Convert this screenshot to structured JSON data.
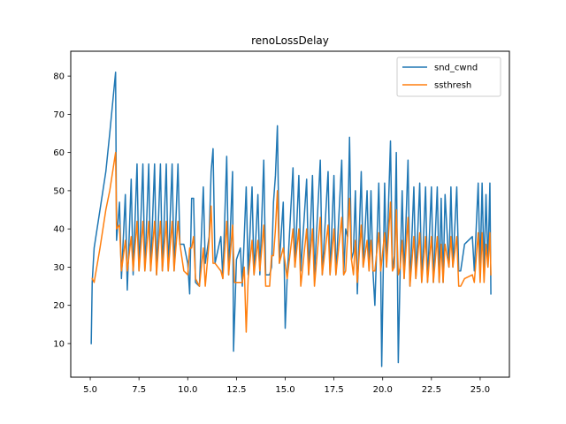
{
  "chart_data": {
    "type": "line",
    "title": "renoLossDelay",
    "xlabel": "",
    "ylabel": "",
    "xlim": [
      4.0,
      26.5
    ],
    "ylim": [
      1.2,
      86.5
    ],
    "xticks": [
      5.0,
      7.5,
      10.0,
      12.5,
      15.0,
      17.5,
      20.0,
      22.5,
      25.0
    ],
    "xtick_labels": [
      "5.0",
      "7.5",
      "10.0",
      "12.5",
      "15.0",
      "17.5",
      "20.0",
      "22.5",
      "25.0"
    ],
    "yticks": [
      10,
      20,
      30,
      40,
      50,
      60,
      70,
      80
    ],
    "ytick_labels": [
      "10",
      "20",
      "30",
      "40",
      "50",
      "60",
      "70",
      "80"
    ],
    "grid": false,
    "legend_position": "top-right",
    "series": [
      {
        "name": "snd_cwnd",
        "color": "#1f77b4",
        "points": [
          [
            5.05,
            10
          ],
          [
            5.1,
            26
          ],
          [
            5.2,
            35
          ],
          [
            5.5,
            45
          ],
          [
            5.8,
            55
          ],
          [
            6.0,
            65
          ],
          [
            6.3,
            81
          ],
          [
            6.35,
            37
          ],
          [
            6.5,
            47
          ],
          [
            6.6,
            27
          ],
          [
            6.8,
            49
          ],
          [
            6.9,
            24
          ],
          [
            7.1,
            53
          ],
          [
            7.2,
            28
          ],
          [
            7.4,
            57
          ],
          [
            7.5,
            29
          ],
          [
            7.7,
            57
          ],
          [
            7.8,
            29
          ],
          [
            8.0,
            57
          ],
          [
            8.1,
            29
          ],
          [
            8.3,
            57
          ],
          [
            8.4,
            28
          ],
          [
            8.6,
            57
          ],
          [
            8.7,
            29
          ],
          [
            8.9,
            57
          ],
          [
            9.0,
            29
          ],
          [
            9.2,
            57
          ],
          [
            9.3,
            29
          ],
          [
            9.5,
            57
          ],
          [
            9.6,
            36
          ],
          [
            9.8,
            36
          ],
          [
            10.0,
            31
          ],
          [
            10.1,
            23
          ],
          [
            10.2,
            48
          ],
          [
            10.3,
            48
          ],
          [
            10.4,
            26
          ],
          [
            10.6,
            25
          ],
          [
            10.8,
            51
          ],
          [
            10.9,
            31
          ],
          [
            11.1,
            38
          ],
          [
            11.2,
            55
          ],
          [
            11.3,
            61
          ],
          [
            11.4,
            31
          ],
          [
            11.7,
            38
          ],
          [
            11.8,
            27
          ],
          [
            12.0,
            59
          ],
          [
            12.1,
            28
          ],
          [
            12.3,
            55
          ],
          [
            12.35,
            8
          ],
          [
            12.5,
            32
          ],
          [
            12.7,
            35
          ],
          [
            12.8,
            25
          ],
          [
            13.0,
            51
          ],
          [
            13.1,
            28
          ],
          [
            13.3,
            51
          ],
          [
            13.4,
            28
          ],
          [
            13.6,
            49
          ],
          [
            13.7,
            28
          ],
          [
            13.9,
            58
          ],
          [
            14.0,
            28
          ],
          [
            14.2,
            28
          ],
          [
            14.3,
            30
          ],
          [
            14.4,
            47
          ],
          [
            14.5,
            54
          ],
          [
            14.6,
            67
          ],
          [
            14.7,
            31
          ],
          [
            14.9,
            47
          ],
          [
            15.0,
            14
          ],
          [
            15.1,
            27
          ],
          [
            15.4,
            56
          ],
          [
            15.5,
            30
          ],
          [
            15.7,
            54
          ],
          [
            15.8,
            29
          ],
          [
            16.1,
            53
          ],
          [
            16.2,
            28
          ],
          [
            16.4,
            54
          ],
          [
            16.5,
            28
          ],
          [
            16.8,
            58
          ],
          [
            16.9,
            28
          ],
          [
            17.2,
            55
          ],
          [
            17.3,
            28
          ],
          [
            17.5,
            54
          ],
          [
            17.6,
            28
          ],
          [
            17.9,
            58
          ],
          [
            18.0,
            28
          ],
          [
            18.1,
            40
          ],
          [
            18.2,
            38
          ],
          [
            18.3,
            64
          ],
          [
            18.4,
            32
          ],
          [
            18.5,
            34
          ],
          [
            18.6,
            50
          ],
          [
            18.7,
            23
          ],
          [
            18.9,
            55
          ],
          [
            19.0,
            30
          ],
          [
            19.2,
            50
          ],
          [
            19.3,
            29
          ],
          [
            19.4,
            50
          ],
          [
            19.5,
            29
          ],
          [
            19.6,
            20
          ],
          [
            19.8,
            52
          ],
          [
            19.9,
            29
          ],
          [
            19.95,
            4
          ],
          [
            20.1,
            52
          ],
          [
            20.2,
            30
          ],
          [
            20.4,
            63
          ],
          [
            20.5,
            29
          ],
          [
            20.6,
            33
          ],
          [
            20.7,
            60
          ],
          [
            20.8,
            5
          ],
          [
            20.9,
            30
          ],
          [
            21.0,
            50
          ],
          [
            21.1,
            27
          ],
          [
            21.3,
            58
          ],
          [
            21.4,
            25
          ],
          [
            21.6,
            51
          ],
          [
            21.7,
            27
          ],
          [
            21.9,
            52
          ],
          [
            22.0,
            26
          ],
          [
            22.2,
            51
          ],
          [
            22.3,
            26
          ],
          [
            22.5,
            51
          ],
          [
            22.6,
            26
          ],
          [
            22.8,
            51
          ],
          [
            22.9,
            26
          ],
          [
            23.0,
            48
          ],
          [
            23.1,
            26
          ],
          [
            23.2,
            49
          ],
          [
            23.4,
            30
          ],
          [
            23.5,
            51
          ],
          [
            23.6,
            30
          ],
          [
            23.8,
            51
          ],
          [
            23.9,
            29
          ],
          [
            24.0,
            29
          ],
          [
            24.2,
            36
          ],
          [
            24.6,
            38
          ],
          [
            24.7,
            29
          ],
          [
            24.9,
            52
          ],
          [
            25.0,
            29
          ],
          [
            25.1,
            52
          ],
          [
            25.2,
            29
          ],
          [
            25.3,
            49
          ],
          [
            25.4,
            30
          ],
          [
            25.5,
            52
          ],
          [
            25.55,
            23
          ]
        ]
      },
      {
        "name": "ssthresh",
        "color": "#ff7f0e",
        "points": [
          [
            5.1,
            27
          ],
          [
            5.2,
            26
          ],
          [
            5.5,
            35
          ],
          [
            5.8,
            45
          ],
          [
            6.0,
            50
          ],
          [
            6.3,
            60
          ],
          [
            6.35,
            40
          ],
          [
            6.5,
            41
          ],
          [
            6.6,
            29
          ],
          [
            6.8,
            37
          ],
          [
            6.9,
            29
          ],
          [
            7.1,
            38
          ],
          [
            7.2,
            29
          ],
          [
            7.4,
            42
          ],
          [
            7.5,
            29
          ],
          [
            7.7,
            42
          ],
          [
            7.8,
            29
          ],
          [
            8.0,
            42
          ],
          [
            8.1,
            29
          ],
          [
            8.3,
            42
          ],
          [
            8.4,
            28
          ],
          [
            8.6,
            42
          ],
          [
            8.7,
            29
          ],
          [
            8.9,
            42
          ],
          [
            9.0,
            29
          ],
          [
            9.2,
            42
          ],
          [
            9.3,
            29
          ],
          [
            9.5,
            42
          ],
          [
            9.6,
            36
          ],
          [
            9.8,
            29
          ],
          [
            10.0,
            28
          ],
          [
            10.1,
            35
          ],
          [
            10.2,
            35
          ],
          [
            10.3,
            38
          ],
          [
            10.4,
            27
          ],
          [
            10.6,
            25
          ],
          [
            10.8,
            35
          ],
          [
            10.9,
            25
          ],
          [
            11.1,
            37
          ],
          [
            11.2,
            46
          ],
          [
            11.3,
            31
          ],
          [
            11.4,
            31
          ],
          [
            11.7,
            29
          ],
          [
            11.8,
            27
          ],
          [
            12.0,
            42
          ],
          [
            12.1,
            28
          ],
          [
            12.3,
            41
          ],
          [
            12.4,
            26
          ],
          [
            12.7,
            26
          ],
          [
            12.8,
            26
          ],
          [
            12.9,
            30
          ],
          [
            13.0,
            13
          ],
          [
            13.1,
            27
          ],
          [
            13.3,
            37
          ],
          [
            13.4,
            28
          ],
          [
            13.6,
            37
          ],
          [
            13.7,
            29
          ],
          [
            13.9,
            41
          ],
          [
            14.0,
            25
          ],
          [
            14.2,
            25
          ],
          [
            14.3,
            33
          ],
          [
            14.4,
            33
          ],
          [
            14.5,
            40
          ],
          [
            14.6,
            50
          ],
          [
            14.7,
            31
          ],
          [
            14.9,
            35
          ],
          [
            15.0,
            31
          ],
          [
            15.1,
            27
          ],
          [
            15.4,
            40
          ],
          [
            15.5,
            30
          ],
          [
            15.7,
            40
          ],
          [
            15.8,
            25
          ],
          [
            16.1,
            40
          ],
          [
            16.2,
            28
          ],
          [
            16.4,
            40
          ],
          [
            16.5,
            25
          ],
          [
            16.8,
            43
          ],
          [
            16.9,
            28
          ],
          [
            17.2,
            41
          ],
          [
            17.3,
            28
          ],
          [
            17.5,
            40
          ],
          [
            17.6,
            28
          ],
          [
            17.9,
            43
          ],
          [
            18.0,
            28
          ],
          [
            18.1,
            29
          ],
          [
            18.2,
            38
          ],
          [
            18.3,
            48
          ],
          [
            18.4,
            32
          ],
          [
            18.5,
            28
          ],
          [
            18.6,
            37
          ],
          [
            18.7,
            26
          ],
          [
            18.9,
            41
          ],
          [
            19.0,
            30
          ],
          [
            19.2,
            37
          ],
          [
            19.3,
            29
          ],
          [
            19.4,
            37
          ],
          [
            19.5,
            29
          ],
          [
            19.6,
            29
          ],
          [
            19.8,
            39
          ],
          [
            19.9,
            29
          ],
          [
            20.1,
            39
          ],
          [
            20.2,
            30
          ],
          [
            20.4,
            47
          ],
          [
            20.5,
            29
          ],
          [
            20.6,
            30
          ],
          [
            20.7,
            45
          ],
          [
            20.8,
            28
          ],
          [
            20.9,
            30
          ],
          [
            21.0,
            37
          ],
          [
            21.1,
            27
          ],
          [
            21.3,
            43
          ],
          [
            21.4,
            25
          ],
          [
            21.6,
            38
          ],
          [
            21.7,
            27
          ],
          [
            21.9,
            39
          ],
          [
            22.0,
            26
          ],
          [
            22.2,
            38
          ],
          [
            22.3,
            26
          ],
          [
            22.5,
            38
          ],
          [
            22.6,
            26
          ],
          [
            22.8,
            38
          ],
          [
            22.9,
            26
          ],
          [
            23.0,
            36
          ],
          [
            23.1,
            26
          ],
          [
            23.2,
            36
          ],
          [
            23.4,
            30
          ],
          [
            23.5,
            38
          ],
          [
            23.6,
            30
          ],
          [
            23.8,
            38
          ],
          [
            23.9,
            25
          ],
          [
            24.0,
            25
          ],
          [
            24.2,
            27
          ],
          [
            24.6,
            28
          ],
          [
            24.7,
            26
          ],
          [
            24.9,
            39
          ],
          [
            25.0,
            26
          ],
          [
            25.1,
            39
          ],
          [
            25.2,
            26
          ],
          [
            25.3,
            36
          ],
          [
            25.4,
            30
          ],
          [
            25.5,
            39
          ],
          [
            25.55,
            28
          ]
        ]
      }
    ]
  }
}
